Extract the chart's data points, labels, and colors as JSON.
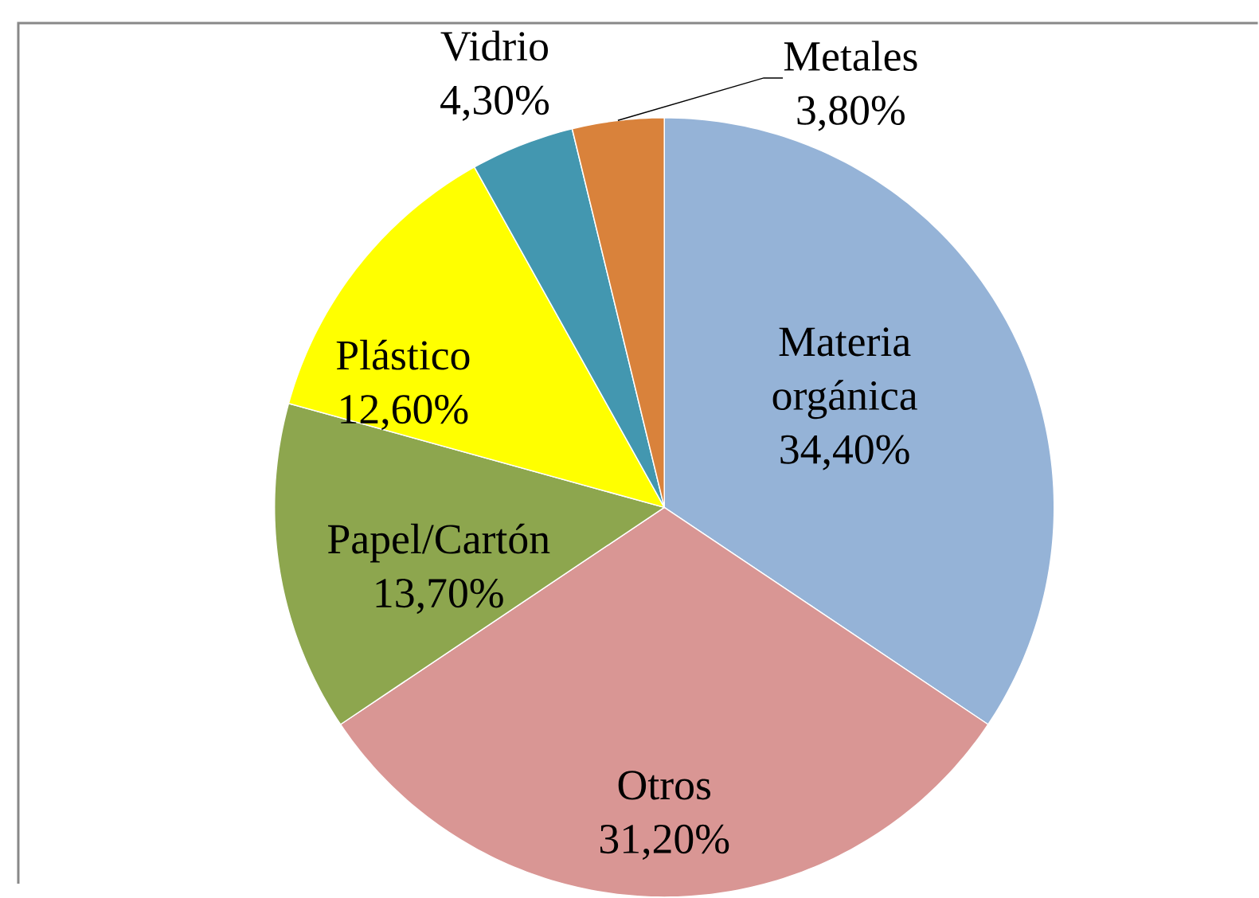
{
  "chart_data": {
    "type": "pie",
    "categories": [
      "Materia orgánica",
      "Otros",
      "Papel/Cartón",
      "Plástico",
      "Vidrio",
      "Metales"
    ],
    "values": [
      34.4,
      31.2,
      13.7,
      12.6,
      4.3,
      3.8
    ],
    "value_labels": [
      "34,40%",
      "31,20%",
      "13,70%",
      "12,60%",
      "4,30%",
      "3,80%"
    ],
    "colors": [
      "#95b3d7",
      "#d99694",
      "#8da64e",
      "#ffff00",
      "#4397b0",
      "#d9823b"
    ],
    "legend": false
  }
}
